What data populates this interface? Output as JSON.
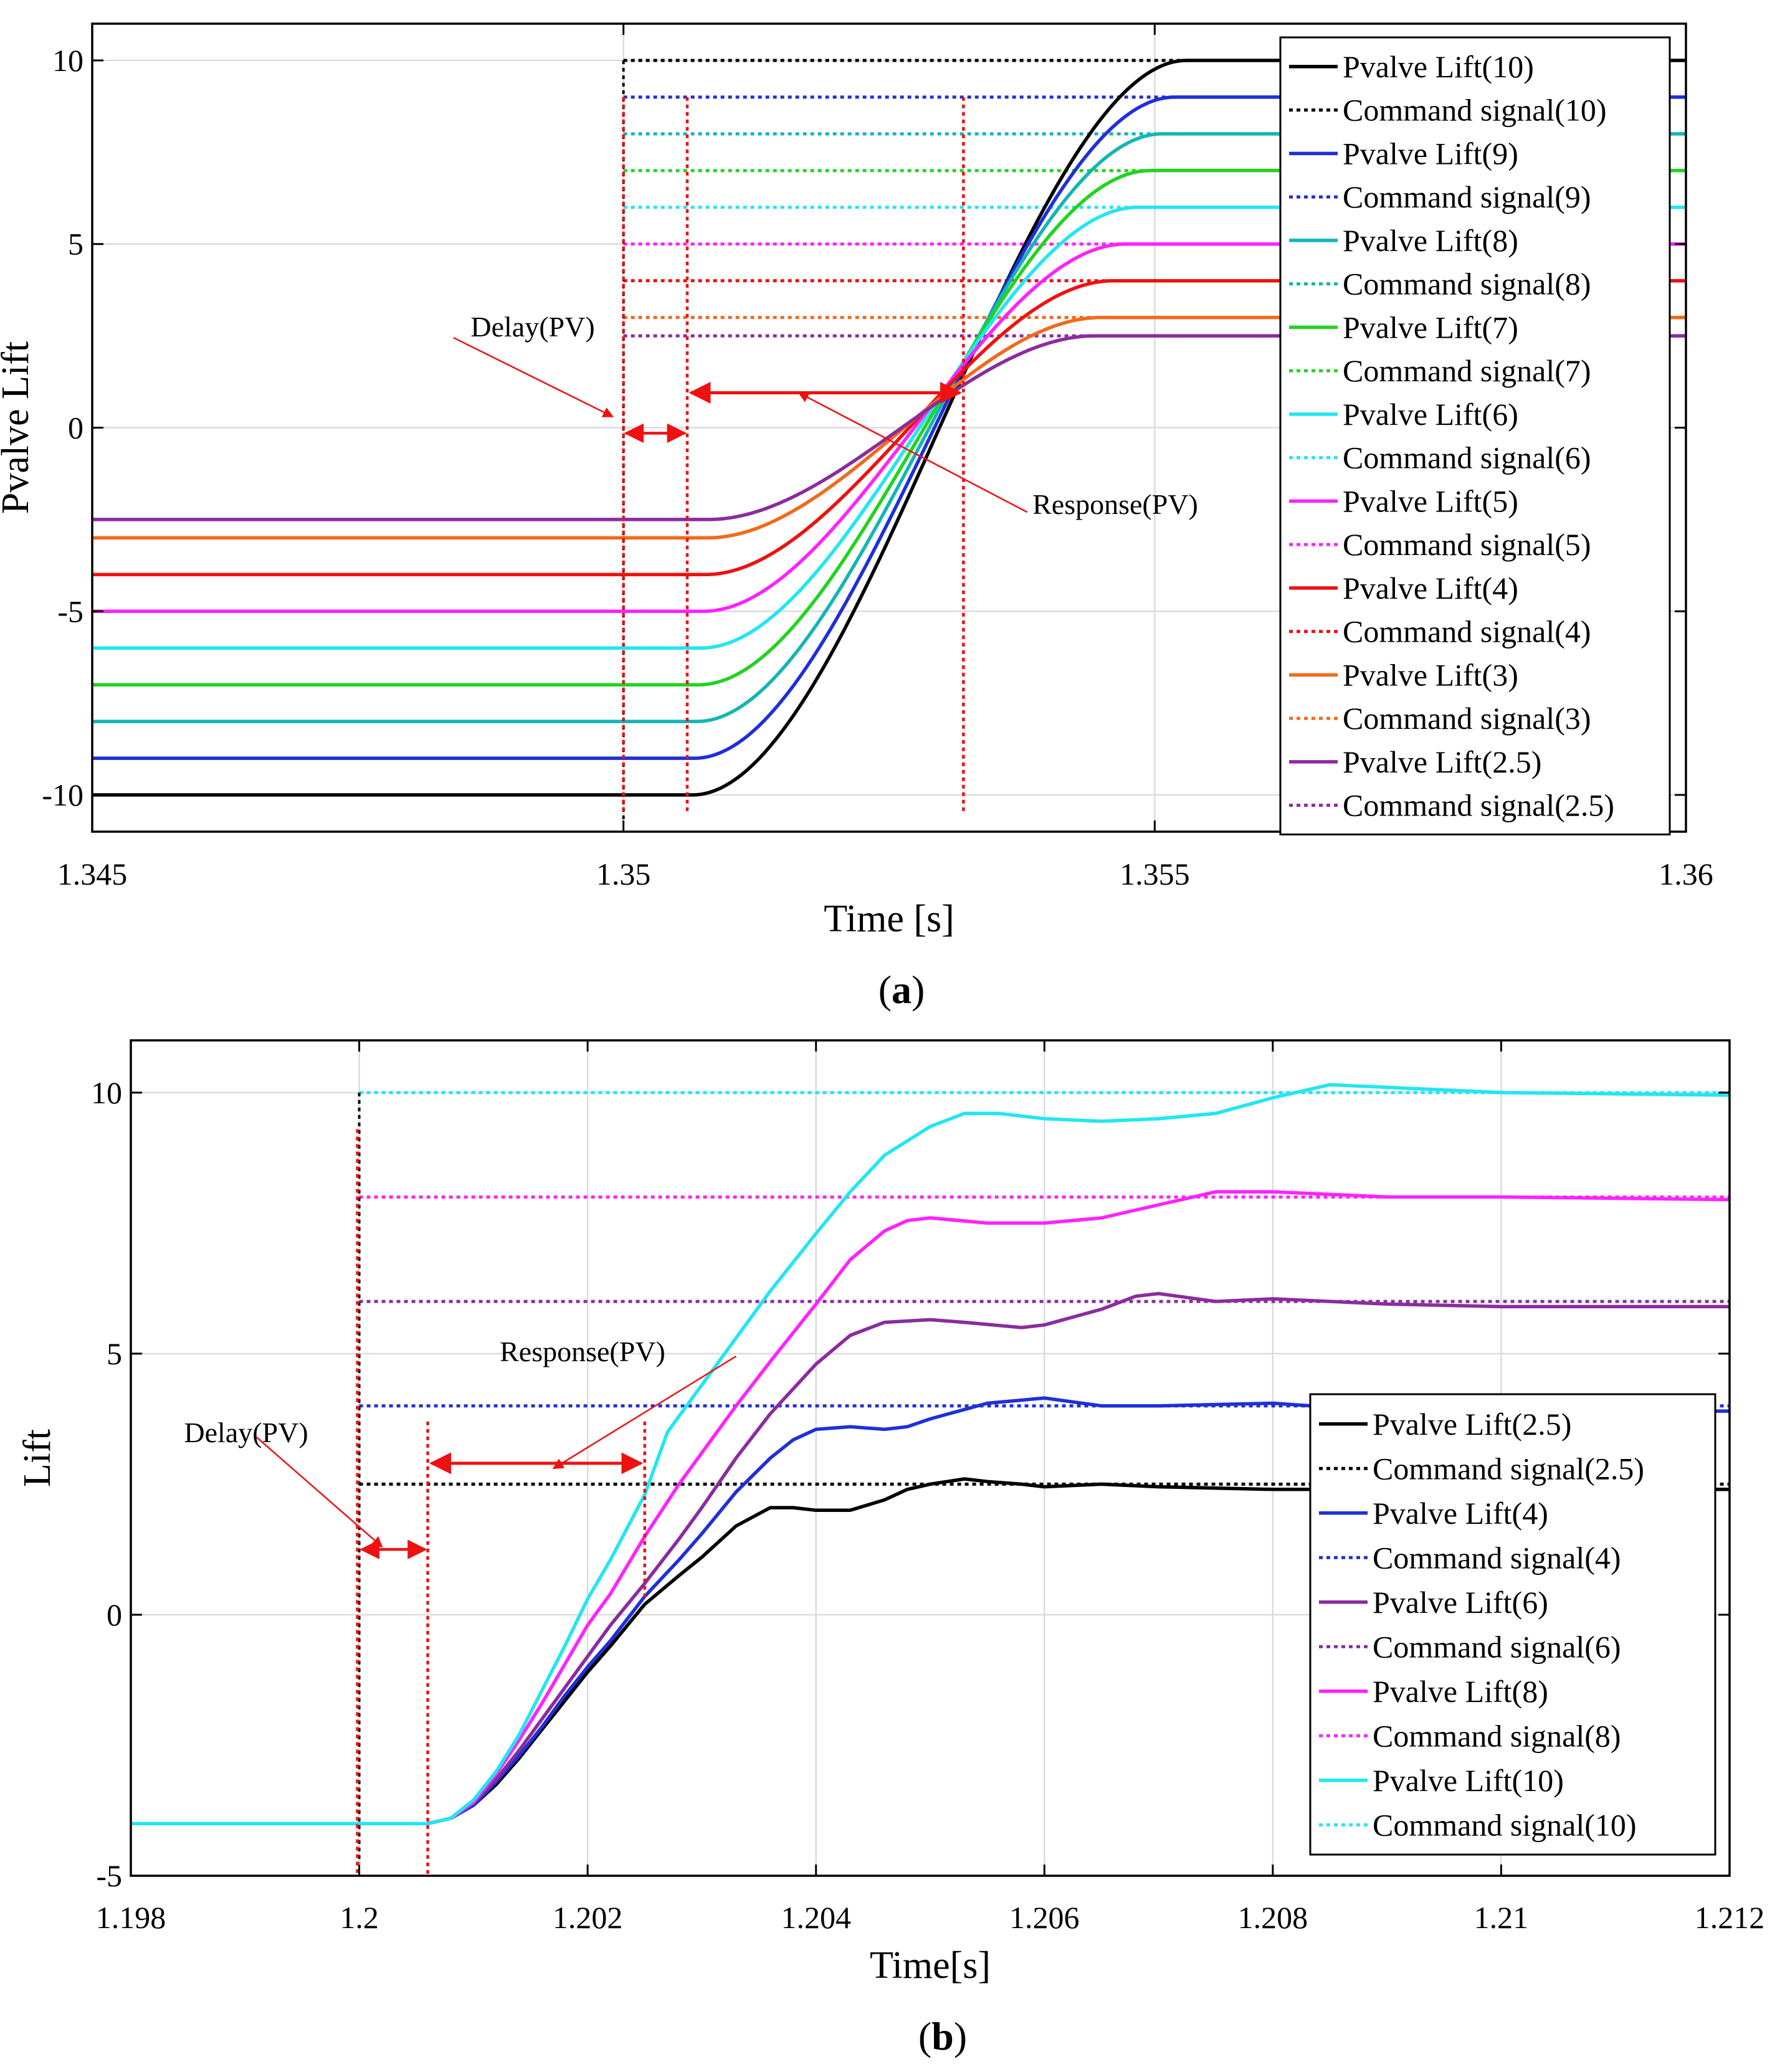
{
  "chart_data": [
    {
      "panel_label": "a",
      "type": "line",
      "xlabel": "Time [s]",
      "ylabel": "Pvalve Lift",
      "xlim": [
        1.345,
        1.36
      ],
      "ylim": [
        -11,
        11
      ],
      "xticks": [
        1.345,
        1.35,
        1.355,
        1.36
      ],
      "xtick_labels": [
        "1.345",
        "1.35",
        "1.355",
        "1.36"
      ],
      "yticks": [
        -10,
        -5,
        0,
        5,
        10
      ],
      "ytick_labels": [
        "-10",
        "-5",
        "0",
        "5",
        "10"
      ],
      "grid": true,
      "legend_position": "top-right",
      "step_time": 1.35,
      "delay_end_time": 1.3506,
      "response_end_time": 1.3532,
      "response_start": 1.35065,
      "response_end": 1.3553,
      "colors": {
        "10": "#000000",
        "9": "#1f2fd9",
        "8": "#13b5b5",
        "7": "#22d322",
        "6": "#22e6f2",
        "5": "#ff22ff",
        "4": "#ee1111",
        "3": "#f26a1b",
        "2.5": "#8a2c9e"
      },
      "series": [
        {
          "name": "Pvalve Lift(10)",
          "level": "10",
          "kind": "lift",
          "initial": -10,
          "final": 10
        },
        {
          "name": "Command signal(10)",
          "level": "10",
          "kind": "command",
          "value": 10
        },
        {
          "name": "Pvalve Lift(9)",
          "level": "9",
          "kind": "lift",
          "initial": -9,
          "final": 9
        },
        {
          "name": "Command signal(9)",
          "level": "9",
          "kind": "command",
          "value": 9
        },
        {
          "name": "Pvalve Lift(8)",
          "level": "8",
          "kind": "lift",
          "initial": -8,
          "final": 8
        },
        {
          "name": "Command signal(8)",
          "level": "8",
          "kind": "command",
          "value": 8
        },
        {
          "name": "Pvalve Lift(7)",
          "level": "7",
          "kind": "lift",
          "initial": -7,
          "final": 7
        },
        {
          "name": "Command signal(7)",
          "level": "7",
          "kind": "command",
          "value": 7
        },
        {
          "name": "Pvalve Lift(6)",
          "level": "6",
          "kind": "lift",
          "initial": -6,
          "final": 6
        },
        {
          "name": "Command signal(6)",
          "level": "6",
          "kind": "command",
          "value": 6
        },
        {
          "name": "Pvalve Lift(5)",
          "level": "5",
          "kind": "lift",
          "initial": -5,
          "final": 5
        },
        {
          "name": "Command signal(5)",
          "level": "5",
          "kind": "command",
          "value": 5
        },
        {
          "name": "Pvalve Lift(4)",
          "level": "4",
          "kind": "lift",
          "initial": -4,
          "final": 4
        },
        {
          "name": "Command signal(4)",
          "level": "4",
          "kind": "command",
          "value": 4
        },
        {
          "name": "Pvalve Lift(3)",
          "level": "3",
          "kind": "lift",
          "initial": -3,
          "final": 3
        },
        {
          "name": "Command signal(3)",
          "level": "3",
          "kind": "command",
          "value": 3
        },
        {
          "name": "Pvalve Lift(2.5)",
          "level": "2.5",
          "kind": "lift",
          "initial": -2.5,
          "final": 2.5
        },
        {
          "name": "Command signal(2.5)",
          "level": "2.5",
          "kind": "command",
          "value": 2.5
        }
      ],
      "annotations": [
        {
          "text": "Delay(PV)",
          "x": 1.3484,
          "y": 2.45,
          "target_x": 1.3499,
          "target_y": 0.3
        },
        {
          "text": "Response(PV)",
          "x": 1.3538,
          "y": -2.3,
          "target_x": 1.35165,
          "target_y": 0.95
        }
      ]
    },
    {
      "panel_label": "b",
      "type": "line",
      "xlabel": "Time[s]",
      "ylabel": "Lift",
      "xlim": [
        1.198,
        1.212
      ],
      "ylim": [
        -5,
        11
      ],
      "xticks": [
        1.198,
        1.2,
        1.202,
        1.204,
        1.206,
        1.208,
        1.21,
        1.212
      ],
      "xtick_labels": [
        "1.198",
        "1.2",
        "1.202",
        "1.204",
        "1.206",
        "1.208",
        "1.21",
        "1.212"
      ],
      "yticks": [
        -5,
        0,
        5,
        10
      ],
      "ytick_labels": [
        "-5",
        "0",
        "5",
        "10"
      ],
      "grid": true,
      "legend_position": "bottom-right",
      "step_time": 1.2,
      "delay_end_time": 1.2006,
      "response_end_time": 1.2025,
      "colors": {
        "2.5": "#000000",
        "4": "#1f2fd9",
        "6": "#8a2c9e",
        "8": "#ff22ff",
        "10": "#22e6f2"
      },
      "series": [
        {
          "name": "Pvalve Lift(2.5)",
          "level": "2.5",
          "kind": "lift",
          "points": [
            [
              1.198,
              -4.0
            ],
            [
              1.2006,
              -4.0
            ],
            [
              1.2008,
              -3.9
            ],
            [
              1.201,
              -3.65
            ],
            [
              1.2012,
              -3.25
            ],
            [
              1.2014,
              -2.75
            ],
            [
              1.2016,
              -2.2
            ],
            [
              1.2018,
              -1.65
            ],
            [
              1.202,
              -1.1
            ],
            [
              1.2022,
              -0.6
            ],
            [
              1.2025,
              0.2
            ],
            [
              1.2028,
              0.75
            ],
            [
              1.203,
              1.1
            ],
            [
              1.2033,
              1.7
            ],
            [
              1.2036,
              2.05
            ],
            [
              1.2038,
              2.05
            ],
            [
              1.204,
              2.0
            ],
            [
              1.2043,
              2.0
            ],
            [
              1.2046,
              2.2
            ],
            [
              1.2048,
              2.4
            ],
            [
              1.205,
              2.5
            ],
            [
              1.2053,
              2.6
            ],
            [
              1.2055,
              2.55
            ],
            [
              1.2058,
              2.5
            ],
            [
              1.206,
              2.45
            ],
            [
              1.2065,
              2.5
            ],
            [
              1.207,
              2.45
            ],
            [
              1.208,
              2.4
            ],
            [
              1.209,
              2.4
            ],
            [
              1.212,
              2.4
            ]
          ]
        },
        {
          "name": "Command signal(2.5)",
          "level": "2.5",
          "kind": "command",
          "value": 2.5
        },
        {
          "name": "Pvalve Lift(4)",
          "level": "4",
          "kind": "lift",
          "points": [
            [
              1.198,
              -4.0
            ],
            [
              1.2006,
              -4.0
            ],
            [
              1.2008,
              -3.9
            ],
            [
              1.201,
              -3.65
            ],
            [
              1.2012,
              -3.2
            ],
            [
              1.2014,
              -2.7
            ],
            [
              1.2016,
              -2.15
            ],
            [
              1.2018,
              -1.55
            ],
            [
              1.202,
              -1.0
            ],
            [
              1.2022,
              -0.5
            ],
            [
              1.2025,
              0.35
            ],
            [
              1.2028,
              1.05
            ],
            [
              1.203,
              1.55
            ],
            [
              1.2033,
              2.35
            ],
            [
              1.2036,
              3.0
            ],
            [
              1.2038,
              3.35
            ],
            [
              1.204,
              3.55
            ],
            [
              1.2043,
              3.6
            ],
            [
              1.2046,
              3.55
            ],
            [
              1.2048,
              3.6
            ],
            [
              1.205,
              3.75
            ],
            [
              1.2055,
              4.05
            ],
            [
              1.206,
              4.15
            ],
            [
              1.2065,
              4.0
            ],
            [
              1.207,
              4.0
            ],
            [
              1.208,
              4.05
            ],
            [
              1.209,
              3.9
            ],
            [
              1.212,
              3.9
            ]
          ]
        },
        {
          "name": "Command signal(4)",
          "level": "4",
          "kind": "command",
          "value": 4
        },
        {
          "name": "Pvalve Lift(6)",
          "level": "6",
          "kind": "lift",
          "points": [
            [
              1.198,
              -4.0
            ],
            [
              1.2006,
              -4.0
            ],
            [
              1.2008,
              -3.9
            ],
            [
              1.201,
              -3.6
            ],
            [
              1.2012,
              -3.15
            ],
            [
              1.2014,
              -2.6
            ],
            [
              1.2016,
              -2.0
            ],
            [
              1.2018,
              -1.4
            ],
            [
              1.202,
              -0.8
            ],
            [
              1.2022,
              -0.2
            ],
            [
              1.2025,
              0.6
            ],
            [
              1.2028,
              1.45
            ],
            [
              1.203,
              2.05
            ],
            [
              1.2033,
              3.0
            ],
            [
              1.2036,
              3.85
            ],
            [
              1.204,
              4.8
            ],
            [
              1.2043,
              5.35
            ],
            [
              1.2046,
              5.6
            ],
            [
              1.205,
              5.65
            ],
            [
              1.2053,
              5.6
            ],
            [
              1.2058,
              5.5
            ],
            [
              1.206,
              5.55
            ],
            [
              1.2065,
              5.85
            ],
            [
              1.2068,
              6.1
            ],
            [
              1.207,
              6.15
            ],
            [
              1.2075,
              6.0
            ],
            [
              1.208,
              6.05
            ],
            [
              1.209,
              5.95
            ],
            [
              1.21,
              5.9
            ],
            [
              1.212,
              5.9
            ]
          ]
        },
        {
          "name": "Command signal(6)",
          "level": "6",
          "kind": "command",
          "value": 6
        },
        {
          "name": "Pvalve Lift(8)",
          "level": "8",
          "kind": "lift",
          "points": [
            [
              1.198,
              -4.0
            ],
            [
              1.2006,
              -4.0
            ],
            [
              1.2008,
              -3.9
            ],
            [
              1.201,
              -3.6
            ],
            [
              1.2012,
              -3.05
            ],
            [
              1.2014,
              -2.4
            ],
            [
              1.2016,
              -1.7
            ],
            [
              1.2018,
              -0.95
            ],
            [
              1.202,
              -0.2
            ],
            [
              1.2022,
              0.4
            ],
            [
              1.2025,
              1.5
            ],
            [
              1.2028,
              2.5
            ],
            [
              1.203,
              3.1
            ],
            [
              1.2033,
              4.0
            ],
            [
              1.2036,
              4.85
            ],
            [
              1.204,
              5.95
            ],
            [
              1.2043,
              6.8
            ],
            [
              1.2046,
              7.35
            ],
            [
              1.2048,
              7.55
            ],
            [
              1.205,
              7.6
            ],
            [
              1.2055,
              7.5
            ],
            [
              1.206,
              7.5
            ],
            [
              1.2065,
              7.6
            ],
            [
              1.207,
              7.85
            ],
            [
              1.2075,
              8.1
            ],
            [
              1.208,
              8.1
            ],
            [
              1.209,
              8.0
            ],
            [
              1.21,
              8.0
            ],
            [
              1.212,
              7.95
            ]
          ]
        },
        {
          "name": "Command signal(8)",
          "level": "8",
          "kind": "command",
          "value": 8
        },
        {
          "name": "Pvalve Lift(10)",
          "level": "10",
          "kind": "lift",
          "points": [
            [
              1.198,
              -4.0
            ],
            [
              1.2006,
              -4.0
            ],
            [
              1.2008,
              -3.9
            ],
            [
              1.201,
              -3.55
            ],
            [
              1.2012,
              -3.0
            ],
            [
              1.2014,
              -2.3
            ],
            [
              1.2016,
              -1.45
            ],
            [
              1.2018,
              -0.6
            ],
            [
              1.202,
              0.3
            ],
            [
              1.2022,
              1.05
            ],
            [
              1.2025,
              2.3
            ],
            [
              1.2027,
              3.5
            ],
            [
              1.203,
              4.4
            ],
            [
              1.2033,
              5.3
            ],
            [
              1.2036,
              6.2
            ],
            [
              1.204,
              7.3
            ],
            [
              1.2043,
              8.1
            ],
            [
              1.2046,
              8.8
            ],
            [
              1.205,
              9.35
            ],
            [
              1.2053,
              9.6
            ],
            [
              1.2056,
              9.6
            ],
            [
              1.206,
              9.5
            ],
            [
              1.2065,
              9.45
            ],
            [
              1.207,
              9.5
            ],
            [
              1.2075,
              9.6
            ],
            [
              1.208,
              9.9
            ],
            [
              1.2085,
              10.15
            ],
            [
              1.209,
              10.1
            ],
            [
              1.21,
              10.0
            ],
            [
              1.212,
              9.95
            ]
          ]
        },
        {
          "name": "Command signal(10)",
          "level": "10",
          "kind": "command",
          "value": 10
        }
      ],
      "annotations": [
        {
          "text": "Response(PV)",
          "x": 1.2033,
          "y": 4.95,
          "target_x": 1.2017,
          "target_y": 2.8
        },
        {
          "text": "Delay(PV)",
          "x": 1.1991,
          "y": 3.4,
          "target_x": 1.2002,
          "target_y": 1.3
        }
      ]
    }
  ]
}
